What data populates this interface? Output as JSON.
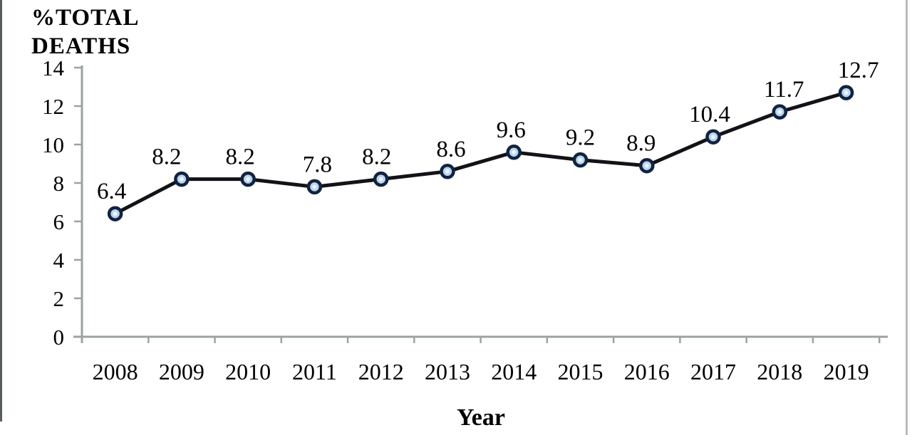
{
  "figure": {
    "y_axis_title_lines": [
      "%TOTAL",
      "DEATHS"
    ],
    "background": "#ffffff",
    "border_left_color": "#585e5d",
    "border_right_color": "#b7bdbc"
  },
  "chart_data": {
    "type": "line",
    "title": "",
    "xlabel": "Year",
    "ylabel": "%TOTAL DEATHS",
    "categories": [
      "2008",
      "2009",
      "2010",
      "2011",
      "2012",
      "2013",
      "2014",
      "2015",
      "2016",
      "2017",
      "2018",
      "2019"
    ],
    "values": [
      6.4,
      8.2,
      8.2,
      7.8,
      8.2,
      8.6,
      9.6,
      9.2,
      8.9,
      10.4,
      11.7,
      12.7
    ],
    "data_labels": [
      "6.4",
      "8.2",
      "8.2",
      "7.8",
      "8.2",
      "8.6",
      "9.6",
      "9.2",
      "8.9",
      "10.4",
      "11.7",
      "12.7"
    ],
    "label_dx": [
      -5,
      -21,
      -11,
      4,
      -6,
      5,
      -4,
      0,
      -8,
      -5,
      6,
      17
    ],
    "ylim": [
      0,
      14
    ],
    "yticks": [
      0,
      2,
      4,
      6,
      8,
      10,
      12,
      14
    ],
    "grid": false,
    "legend": "none",
    "marker": "circle",
    "colors": {
      "line": "#121217",
      "marker_fill": "#bcd4f0",
      "marker_inner": "#eef5fd",
      "marker_stroke": "#10233f",
      "axis": "#9ba3a1",
      "text": "#000000"
    }
  }
}
